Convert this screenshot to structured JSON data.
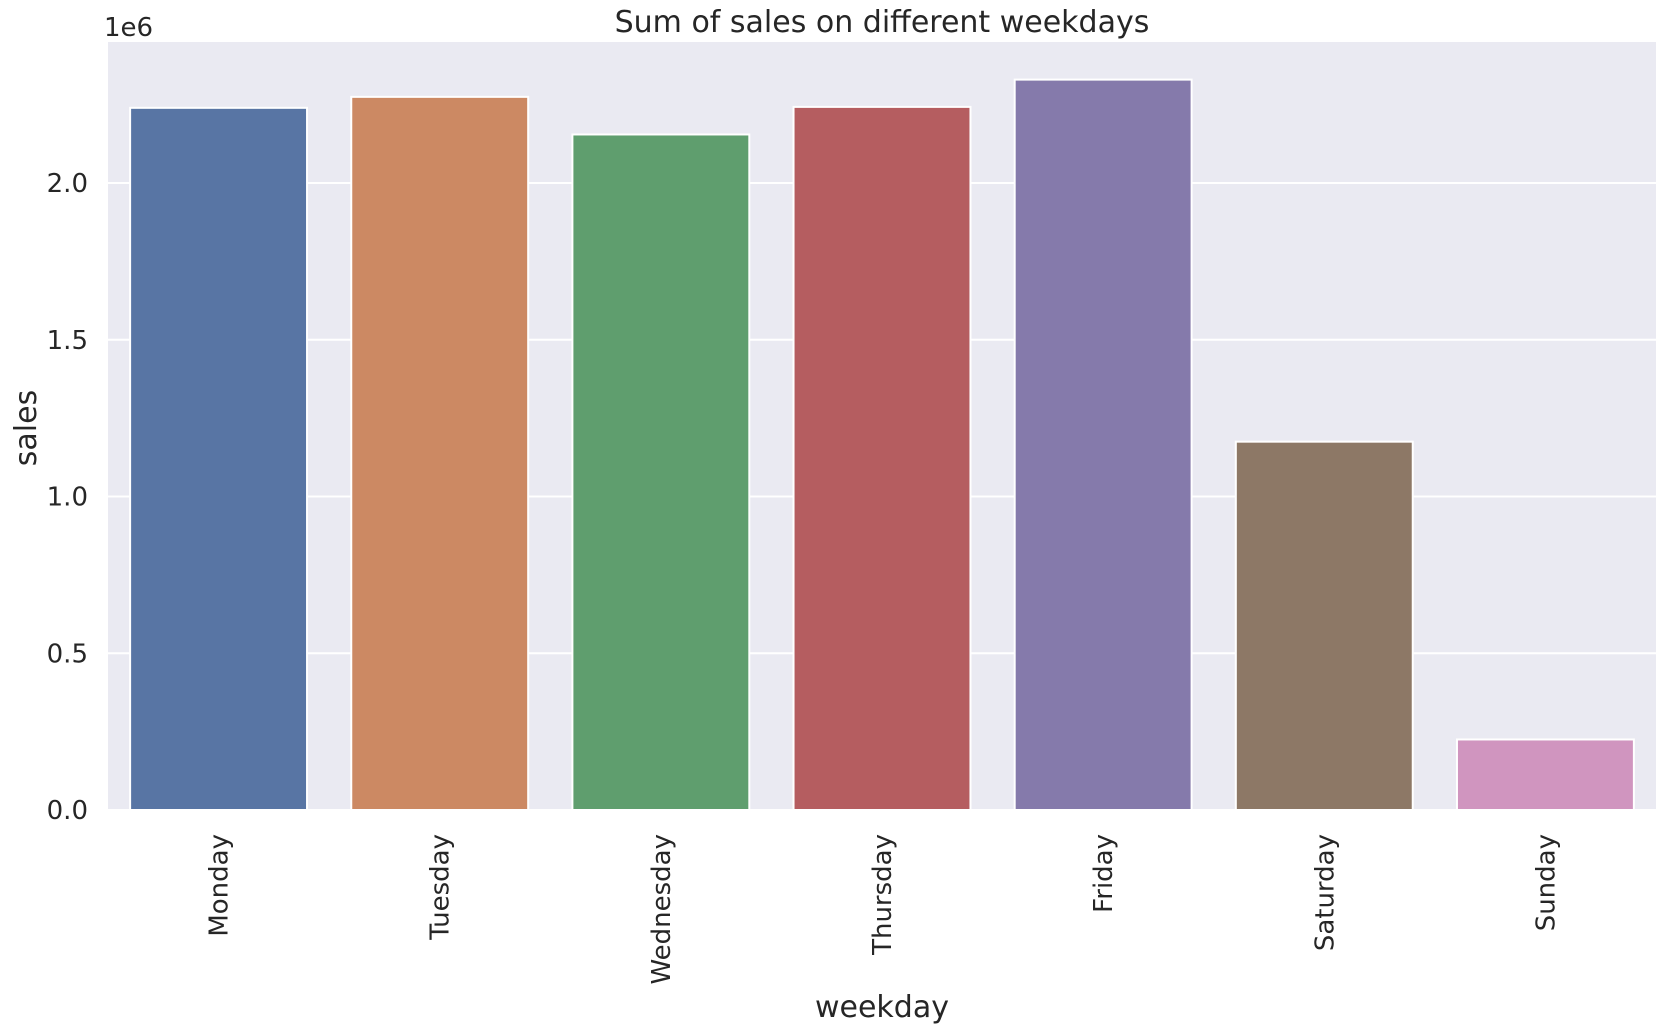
{
  "chart_data": {
    "type": "bar",
    "title": "Sum of sales on different weekdays",
    "xlabel": "weekday",
    "ylabel": "sales",
    "y_offset_label": "1e6",
    "categories": [
      "Monday",
      "Tuesday",
      "Wednesday",
      "Thursday",
      "Friday",
      "Saturday",
      "Sunday"
    ],
    "values": [
      2240000,
      2275000,
      2155000,
      2243000,
      2330000,
      1175000,
      225000
    ],
    "colors": [
      "#5875a4",
      "#cc8963",
      "#5f9e6e",
      "#b55d60",
      "#857aab",
      "#8d7866",
      "#d095bf"
    ],
    "ylim": [
      0,
      2450000
    ],
    "yticks": [
      0,
      500000,
      1000000,
      1500000,
      2000000
    ],
    "ytick_labels": [
      "0.0",
      "0.5",
      "1.0",
      "1.5",
      "2.0"
    ],
    "grid": true,
    "background": "#eaeaf2",
    "grid_color": "#ffffff"
  }
}
